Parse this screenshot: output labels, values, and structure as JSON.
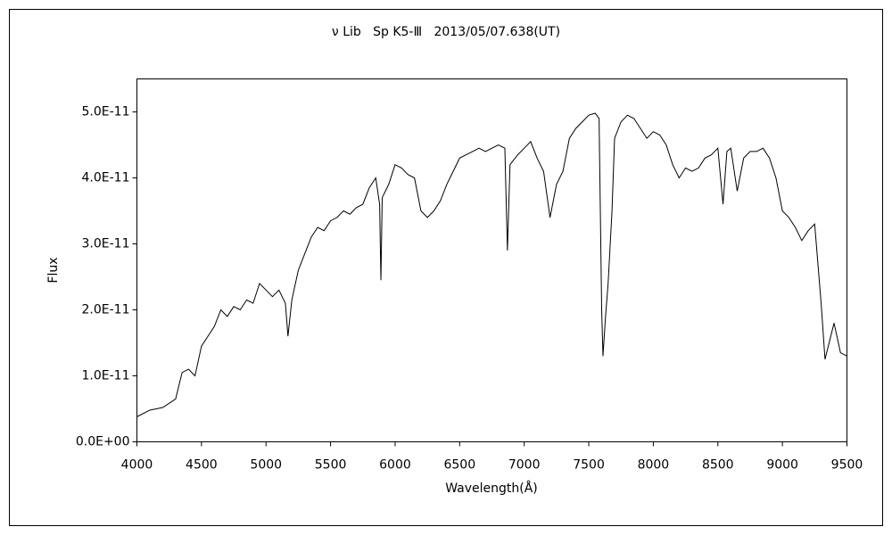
{
  "chart_data": {
    "type": "line",
    "title": "ν Lib   Sp K5-Ⅲ   2013/05/07.638(UT)",
    "xlabel": "Wavelength(Å)",
    "ylabel": "Flux",
    "color": "#000000",
    "grid": false,
    "xlim": [
      4000,
      9500
    ],
    "xticks": [
      4000,
      4500,
      5000,
      5500,
      6000,
      6500,
      7000,
      7500,
      8000,
      8500,
      9000,
      9500
    ],
    "ylim": [
      0,
      5.5e-11
    ],
    "yticks": [
      {
        "value": 0,
        "label": "0.0E+00"
      },
      {
        "value": 1e-11,
        "label": "1.0E-11"
      },
      {
        "value": 2e-11,
        "label": "2.0E-11"
      },
      {
        "value": 3e-11,
        "label": "3.0E-11"
      },
      {
        "value": 4e-11,
        "label": "4.0E-11"
      },
      {
        "value": 5e-11,
        "label": "5.0E-11"
      }
    ],
    "x": [
      4000,
      4100,
      4200,
      4300,
      4350,
      4400,
      4450,
      4500,
      4550,
      4600,
      4650,
      4700,
      4750,
      4800,
      4850,
      4900,
      4950,
      5000,
      5050,
      5100,
      5150,
      5170,
      5200,
      5250,
      5300,
      5350,
      5400,
      5450,
      5500,
      5550,
      5600,
      5650,
      5700,
      5750,
      5800,
      5850,
      5880,
      5890,
      5900,
      5950,
      6000,
      6050,
      6100,
      6150,
      6200,
      6250,
      6300,
      6350,
      6400,
      6450,
      6500,
      6550,
      6600,
      6650,
      6700,
      6750,
      6800,
      6850,
      6870,
      6890,
      6950,
      7000,
      7050,
      7100,
      7150,
      7200,
      7250,
      7300,
      7350,
      7400,
      7450,
      7500,
      7550,
      7580,
      7600,
      7610,
      7630,
      7650,
      7680,
      7700,
      7750,
      7800,
      7850,
      7900,
      7950,
      8000,
      8050,
      8100,
      8150,
      8200,
      8250,
      8300,
      8350,
      8400,
      8450,
      8500,
      8540,
      8570,
      8600,
      8650,
      8700,
      8750,
      8800,
      8850,
      8900,
      8950,
      9000,
      9050,
      9100,
      9150,
      9200,
      9250,
      9300,
      9330,
      9400,
      9450,
      9500
    ],
    "values": [
      3.8e-12,
      4.8e-12,
      5.2e-12,
      6.5e-12,
      1.05e-11,
      1.1e-11,
      1e-11,
      1.45e-11,
      1.6e-11,
      1.75e-11,
      2e-11,
      1.9e-11,
      2.05e-11,
      2e-11,
      2.15e-11,
      2.1e-11,
      2.4e-11,
      2.3e-11,
      2.2e-11,
      2.3e-11,
      2.1e-11,
      1.6e-11,
      2.15e-11,
      2.6e-11,
      2.85e-11,
      3.1e-11,
      3.25e-11,
      3.2e-11,
      3.35e-11,
      3.4e-11,
      3.5e-11,
      3.45e-11,
      3.55e-11,
      3.6e-11,
      3.85e-11,
      4e-11,
      3.6e-11,
      2.45e-11,
      3.7e-11,
      3.9e-11,
      4.2e-11,
      4.15e-11,
      4.05e-11,
      4e-11,
      3.5e-11,
      3.4e-11,
      3.5e-11,
      3.65e-11,
      3.9e-11,
      4.1e-11,
      4.3e-11,
      4.35e-11,
      4.4e-11,
      4.45e-11,
      4.4e-11,
      4.45e-11,
      4.5e-11,
      4.45e-11,
      2.9e-11,
      4.2e-11,
      4.35e-11,
      4.45e-11,
      4.55e-11,
      4.3e-11,
      4.1e-11,
      3.4e-11,
      3.9e-11,
      4.1e-11,
      4.6e-11,
      4.75e-11,
      4.85e-11,
      4.95e-11,
      4.98e-11,
      4.9e-11,
      2e-11,
      1.3e-11,
      1.9e-11,
      2.4e-11,
      3.5e-11,
      4.6e-11,
      4.85e-11,
      4.95e-11,
      4.9e-11,
      4.75e-11,
      4.6e-11,
      4.7e-11,
      4.65e-11,
      4.5e-11,
      4.2e-11,
      4e-11,
      4.15e-11,
      4.1e-11,
      4.15e-11,
      4.3e-11,
      4.35e-11,
      4.45e-11,
      3.6e-11,
      4.4e-11,
      4.45e-11,
      3.8e-11,
      4.3e-11,
      4.4e-11,
      4.4e-11,
      4.45e-11,
      4.3e-11,
      4e-11,
      3.5e-11,
      3.4e-11,
      3.25e-11,
      3.05e-11,
      3.2e-11,
      3.3e-11,
      2.1e-11,
      1.25e-11,
      1.8e-11,
      1.35e-11,
      1.3e-11
    ]
  }
}
